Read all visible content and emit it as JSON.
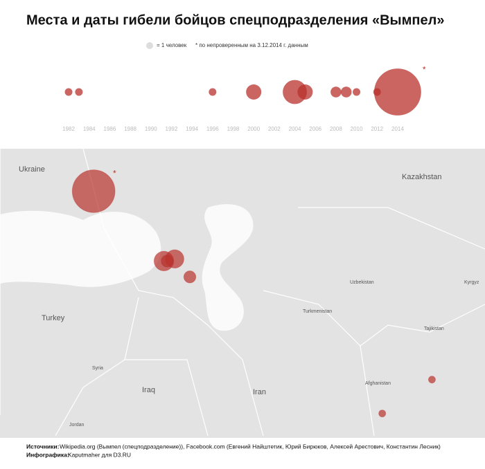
{
  "header": {
    "title": "Места и даты гибели бойцов спецподразделения «Вымпел»",
    "legend_label": "= 1 человек",
    "note_marker": "*",
    "note": "* по непроверенным на 3.12.2014 г. данным"
  },
  "chart_data": [
    {
      "type": "bubble-timeline",
      "x": [
        1982,
        1983,
        1996,
        2000,
        2004,
        2005,
        2008,
        2009,
        2010,
        2012,
        2014
      ],
      "sizes": [
        1,
        1,
        1,
        4,
        10,
        4,
        2,
        2,
        1,
        1,
        38
      ],
      "color": "#b8322c",
      "xlim": [
        1981,
        2016
      ],
      "xticks": [
        1982,
        1984,
        1986,
        1988,
        1990,
        1992,
        1994,
        1996,
        1998,
        2000,
        2002,
        2004,
        2006,
        2008,
        2010,
        2012,
        2014
      ]
    },
    {
      "type": "bubble-map",
      "lon": [
        38.6,
        45.1,
        46.1,
        45.4,
        47.5,
        69.9,
        65.3
      ],
      "lat": [
        51.0,
        44.4,
        44.6,
        44.4,
        42.9,
        33.2,
        30.0
      ],
      "sizes": [
        38,
        8,
        7,
        3,
        3,
        1,
        1
      ],
      "color": "#b8322c",
      "labels": [
        "Ukraine",
        "Kazakhstan",
        "Turkey",
        "Iraq",
        "Iran",
        "Afghanistan",
        "Turkmenistan",
        "Uzbekistan",
        "Tajikistan",
        "Kyrgyz",
        "Syria",
        "Jordan"
      ]
    }
  ],
  "footer": {
    "sources_label": "Источники:",
    "sources": "Wikipedia.org (Вымпел (спецподразделение)), Facebook.com (Евгений Найштетик, Юрий Бирюков, Алексей Арестович, Константин Лесник)",
    "credit_label": "Инфографика:",
    "credit": "Kaputmaher для D3.RU"
  }
}
